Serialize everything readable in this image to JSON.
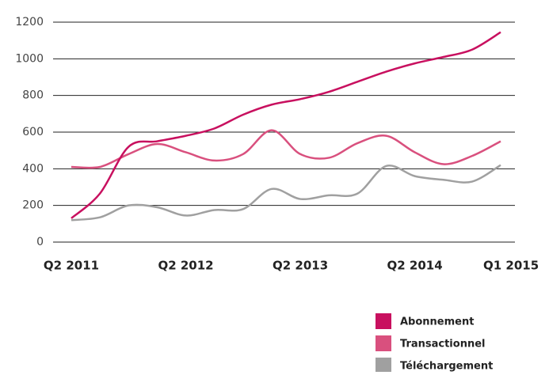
{
  "chart_data": {
    "type": "line",
    "categories": [
      "Q2 2011",
      null,
      null,
      null,
      "Q2 2012",
      null,
      null,
      null,
      "Q2 2013",
      null,
      null,
      null,
      "Q2 2014",
      null,
      null,
      "Q1 2015"
    ],
    "series": [
      {
        "name": "Abonnement",
        "color": "#c8105f",
        "values": [
          130,
          265,
          520,
          550,
          580,
          620,
          695,
          750,
          780,
          820,
          875,
          930,
          975,
          1010,
          1050,
          1145
        ]
      },
      {
        "name": "Transactionnel",
        "color": "#d9507e",
        "values": [
          410,
          410,
          480,
          535,
          490,
          445,
          480,
          610,
          480,
          460,
          540,
          580,
          490,
          425,
          470,
          550
        ]
      },
      {
        "name": "Téléchargement",
        "color": "#a0a0a0",
        "values": [
          120,
          135,
          200,
          190,
          145,
          175,
          180,
          290,
          235,
          255,
          265,
          415,
          360,
          340,
          330,
          420
        ]
      }
    ],
    "ylim": [
      0,
      1200
    ],
    "yticks": [
      0,
      200,
      400,
      600,
      800,
      1000,
      1200
    ],
    "grid": true,
    "legend": "lower right"
  }
}
